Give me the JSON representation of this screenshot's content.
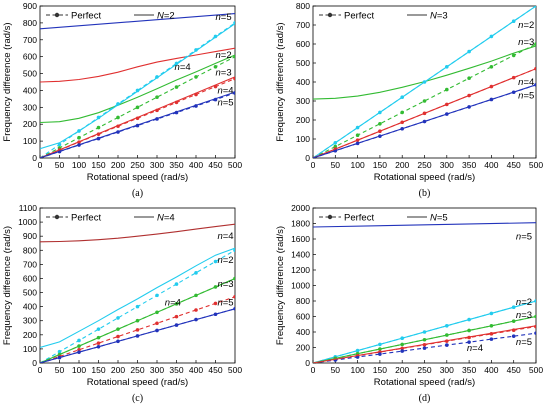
{
  "chart_data": [
    {
      "type": "line",
      "caption": "(a)",
      "xlabel": "Rotational speed  (rad/s)",
      "ylabel": "Frequency difference  (rad/s)",
      "xlim": [
        0,
        500
      ],
      "ylim": [
        0,
        900
      ],
      "xticks": [
        0,
        50,
        100,
        150,
        200,
        250,
        300,
        350,
        400,
        450,
        500
      ],
      "yticks": [
        0,
        100,
        200,
        300,
        400,
        500,
        600,
        700,
        800,
        900
      ],
      "legend": {
        "placement": "top-left",
        "entries": [
          {
            "label": "Perfect",
            "style": "dashed-marker"
          },
          {
            "label": "N=2",
            "style": "solid"
          }
        ]
      },
      "annotations": [
        {
          "text": "n=5",
          "x": 450,
          "y": 835
        },
        {
          "text": "n=4",
          "x": 345,
          "y": 540
        },
        {
          "text": "n=2",
          "x": 450,
          "y": 610
        },
        {
          "text": "n=3",
          "x": 450,
          "y": 505
        },
        {
          "text": "n=4",
          "x": 455,
          "y": 400
        },
        {
          "text": "n=5",
          "x": 455,
          "y": 330
        }
      ],
      "series": [
        {
          "color": "#2233bb",
          "style": "solid",
          "x": [
            0,
            500
          ],
          "y": [
            765,
            855
          ]
        },
        {
          "color": "#e03030",
          "style": "solid",
          "x": [
            0,
            50,
            100,
            150,
            200,
            250,
            300,
            350,
            400,
            450,
            500
          ],
          "y": [
            450,
            454,
            465,
            483,
            508,
            540,
            568,
            590,
            610,
            630,
            650
          ]
        },
        {
          "color": "#33bb33",
          "style": "solid",
          "x": [
            0,
            50,
            100,
            150,
            200,
            250,
            300,
            350,
            400,
            450,
            500
          ],
          "y": [
            210,
            215,
            235,
            268,
            312,
            360,
            410,
            462,
            510,
            560,
            610
          ]
        },
        {
          "color": "#22ccee",
          "style": "solid",
          "x": [
            0,
            50,
            100,
            150,
            200,
            250,
            300,
            350,
            400,
            450,
            500
          ],
          "y": [
            55,
            90,
            160,
            235,
            315,
            395,
            475,
            555,
            635,
            715,
            795
          ]
        },
        {
          "color": "#22ccee",
          "style": "dashed",
          "markers": true,
          "x": [
            0,
            50,
            100,
            150,
            200,
            250,
            300,
            350,
            400,
            450,
            500
          ],
          "y": [
            0,
            80,
            160,
            240,
            320,
            400,
            480,
            560,
            640,
            720,
            800
          ]
        },
        {
          "color": "#33bb33",
          "style": "dashed",
          "markers": true,
          "x": [
            0,
            50,
            100,
            150,
            200,
            250,
            300,
            350,
            400,
            450,
            500
          ],
          "y": [
            0,
            60,
            120,
            180,
            240,
            300,
            360,
            420,
            480,
            540,
            600
          ]
        },
        {
          "color": "#e03030",
          "style": "dashed",
          "markers": true,
          "x": [
            0,
            50,
            100,
            150,
            200,
            250,
            300,
            350,
            400,
            450,
            500
          ],
          "y": [
            0,
            47,
            94,
            141,
            188,
            235,
            282,
            329,
            376,
            423,
            470
          ]
        },
        {
          "color": "#2233bb",
          "style": "dashed",
          "markers": true,
          "x": [
            0,
            50,
            100,
            150,
            200,
            250,
            300,
            350,
            400,
            450,
            500
          ],
          "y": [
            0,
            38,
            77,
            115,
            154,
            192,
            231,
            269,
            308,
            346,
            385
          ]
        },
        {
          "color": "#e03030",
          "style": "solid",
          "x": [
            0,
            500
          ],
          "y": [
            0,
            480
          ]
        },
        {
          "color": "#2233bb",
          "style": "solid",
          "x": [
            0,
            500
          ],
          "y": [
            0,
            390
          ]
        }
      ]
    },
    {
      "type": "line",
      "caption": "(b)",
      "xlabel": "Rotational speed  (rad/s)",
      "ylabel": "Frequency difference  (rad/s)",
      "xlim": [
        0,
        500
      ],
      "ylim": [
        0,
        800
      ],
      "xticks": [
        0,
        50,
        100,
        150,
        200,
        250,
        300,
        350,
        400,
        450,
        500
      ],
      "yticks": [
        0,
        100,
        200,
        300,
        400,
        500,
        600,
        700,
        800
      ],
      "legend": {
        "placement": "top-left",
        "entries": [
          {
            "label": "Perfect",
            "style": "dashed-marker"
          },
          {
            "label": "N=3",
            "style": "solid"
          }
        ]
      },
      "annotations": [
        {
          "text": "n=2",
          "x": 460,
          "y": 700
        },
        {
          "text": "n=3",
          "x": 460,
          "y": 610
        },
        {
          "text": "n=4",
          "x": 460,
          "y": 400
        },
        {
          "text": "n=5",
          "x": 460,
          "y": 330
        }
      ],
      "series": [
        {
          "color": "#33bb33",
          "style": "solid",
          "x": [
            0,
            50,
            100,
            150,
            200,
            250,
            300,
            350,
            400,
            450,
            500
          ],
          "y": [
            310,
            314,
            326,
            346,
            372,
            402,
            436,
            472,
            510,
            552,
            590
          ]
        },
        {
          "color": "#22ccee",
          "style": "solid",
          "x": [
            0,
            500
          ],
          "y": [
            0,
            800
          ]
        },
        {
          "color": "#22ccee",
          "style": "dashed",
          "markers": true,
          "x": [
            0,
            50,
            100,
            150,
            200,
            250,
            300,
            350,
            400,
            450,
            500
          ],
          "y": [
            0,
            80,
            160,
            240,
            320,
            400,
            480,
            560,
            640,
            720,
            800
          ]
        },
        {
          "color": "#33bb33",
          "style": "dashed",
          "markers": true,
          "x": [
            0,
            50,
            100,
            150,
            200,
            250,
            300,
            350,
            400,
            450,
            500
          ],
          "y": [
            0,
            60,
            120,
            180,
            240,
            300,
            360,
            420,
            480,
            540,
            600
          ]
        },
        {
          "color": "#e03030",
          "style": "dashed",
          "markers": true,
          "x": [
            0,
            50,
            100,
            150,
            200,
            250,
            300,
            350,
            400,
            450,
            500
          ],
          "y": [
            0,
            47,
            94,
            141,
            188,
            235,
            282,
            329,
            376,
            423,
            470
          ]
        },
        {
          "color": "#2233bb",
          "style": "dashed",
          "markers": true,
          "x": [
            0,
            50,
            100,
            150,
            200,
            250,
            300,
            350,
            400,
            450,
            500
          ],
          "y": [
            0,
            38,
            77,
            115,
            154,
            192,
            231,
            269,
            308,
            346,
            385
          ]
        },
        {
          "color": "#e03030",
          "style": "solid",
          "x": [
            0,
            500
          ],
          "y": [
            0,
            470
          ]
        },
        {
          "color": "#2233bb",
          "style": "solid",
          "x": [
            0,
            500
          ],
          "y": [
            0,
            385
          ]
        }
      ]
    },
    {
      "type": "line",
      "caption": "(c)",
      "xlabel": "Rotational speed  (rad/s)",
      "ylabel": "Frequency difference  (rad/s)",
      "xlim": [
        0,
        500
      ],
      "ylim": [
        0,
        1100
      ],
      "xticks": [
        0,
        50,
        100,
        150,
        200,
        250,
        300,
        350,
        400,
        450,
        500
      ],
      "yticks": [
        0,
        100,
        200,
        300,
        400,
        500,
        600,
        700,
        800,
        900,
        1000,
        1100
      ],
      "legend": {
        "placement": "top-left",
        "entries": [
          {
            "label": "Perfect",
            "style": "dashed-marker"
          },
          {
            "label": "N=4",
            "style": "solid"
          }
        ]
      },
      "annotations": [
        {
          "text": "n=4",
          "x": 455,
          "y": 900
        },
        {
          "text": "n=2",
          "x": 455,
          "y": 730
        },
        {
          "text": "n=3",
          "x": 455,
          "y": 560
        },
        {
          "text": "n=4",
          "x": 320,
          "y": 430
        },
        {
          "text": "n=5",
          "x": 455,
          "y": 430
        }
      ],
      "series": [
        {
          "color": "#b03030",
          "style": "solid",
          "x": [
            0,
            50,
            100,
            150,
            200,
            250,
            300,
            350,
            400,
            450,
            500
          ],
          "y": [
            860,
            862,
            867,
            875,
            886,
            900,
            915,
            932,
            950,
            968,
            985
          ]
        },
        {
          "color": "#22ccee",
          "style": "solid",
          "x": [
            0,
            50,
            100,
            150,
            200,
            250,
            300,
            350,
            400,
            450,
            500
          ],
          "y": [
            110,
            150,
            225,
            300,
            380,
            455,
            535,
            610,
            690,
            765,
            815
          ]
        },
        {
          "color": "#22ccee",
          "style": "dashed",
          "markers": true,
          "x": [
            0,
            50,
            100,
            150,
            200,
            250,
            300,
            350,
            400,
            450,
            500
          ],
          "y": [
            0,
            80,
            160,
            240,
            320,
            400,
            480,
            560,
            640,
            720,
            800
          ]
        },
        {
          "color": "#33bb33",
          "style": "dashed",
          "markers": true,
          "x": [
            0,
            50,
            100,
            150,
            200,
            250,
            300,
            350,
            400,
            450,
            500
          ],
          "y": [
            0,
            60,
            120,
            180,
            240,
            300,
            360,
            420,
            480,
            540,
            600
          ]
        },
        {
          "color": "#e03030",
          "style": "dashed",
          "markers": true,
          "x": [
            0,
            50,
            100,
            150,
            200,
            250,
            300,
            350,
            400,
            450,
            500
          ],
          "y": [
            0,
            47,
            94,
            141,
            188,
            235,
            282,
            329,
            376,
            423,
            470
          ]
        },
        {
          "color": "#2233bb",
          "style": "dashed",
          "markers": true,
          "x": [
            0,
            50,
            100,
            150,
            200,
            250,
            300,
            350,
            400,
            450,
            500
          ],
          "y": [
            0,
            38,
            77,
            115,
            154,
            192,
            231,
            269,
            308,
            346,
            385
          ]
        },
        {
          "color": "#33bb33",
          "style": "solid",
          "x": [
            0,
            500
          ],
          "y": [
            0,
            600
          ]
        },
        {
          "color": "#2233bb",
          "style": "solid",
          "x": [
            0,
            500
          ],
          "y": [
            0,
            385
          ]
        }
      ]
    },
    {
      "type": "line",
      "caption": "(d)",
      "xlabel": "Rotational speed  (rad/s)",
      "ylabel": "Frequency difference  (rad/s)",
      "xlim": [
        0,
        500
      ],
      "ylim": [
        0,
        2000
      ],
      "xticks": [
        0,
        50,
        100,
        150,
        200,
        250,
        300,
        350,
        400,
        450,
        500
      ],
      "yticks": [
        0,
        200,
        400,
        600,
        800,
        1000,
        1200,
        1400,
        1600,
        1800,
        2000
      ],
      "legend": {
        "placement": "top-left",
        "entries": [
          {
            "label": "Perfect",
            "style": "dashed-marker"
          },
          {
            "label": "N=5",
            "style": "solid"
          }
        ]
      },
      "annotations": [
        {
          "text": "n=5",
          "x": 455,
          "y": 1630
        },
        {
          "text": "n=2",
          "x": 455,
          "y": 790
        },
        {
          "text": "n=3",
          "x": 455,
          "y": 620
        },
        {
          "text": "n=4",
          "x": 345,
          "y": 195
        },
        {
          "text": "n=5",
          "x": 455,
          "y": 270
        }
      ],
      "series": [
        {
          "color": "#2233bb",
          "style": "solid",
          "x": [
            0,
            500
          ],
          "y": [
            1755,
            1810
          ]
        },
        {
          "color": "#22ccee",
          "style": "solid",
          "x": [
            0,
            500
          ],
          "y": [
            0,
            800
          ]
        },
        {
          "color": "#22ccee",
          "style": "dashed",
          "markers": true,
          "x": [
            0,
            50,
            100,
            150,
            200,
            250,
            300,
            350,
            400,
            450,
            500
          ],
          "y": [
            0,
            80,
            160,
            240,
            320,
            400,
            480,
            560,
            640,
            720,
            800
          ]
        },
        {
          "color": "#33bb33",
          "style": "dashed",
          "markers": true,
          "x": [
            0,
            50,
            100,
            150,
            200,
            250,
            300,
            350,
            400,
            450,
            500
          ],
          "y": [
            0,
            60,
            120,
            180,
            240,
            300,
            360,
            420,
            480,
            540,
            600
          ]
        },
        {
          "color": "#e03030",
          "style": "dashed",
          "markers": true,
          "x": [
            0,
            50,
            100,
            150,
            200,
            250,
            300,
            350,
            400,
            450,
            500
          ],
          "y": [
            0,
            47,
            94,
            141,
            188,
            235,
            282,
            329,
            376,
            423,
            470
          ]
        },
        {
          "color": "#2233bb",
          "style": "dashed",
          "markers": true,
          "x": [
            0,
            50,
            100,
            150,
            200,
            250,
            300,
            350,
            400,
            450,
            500
          ],
          "y": [
            0,
            38,
            77,
            115,
            154,
            192,
            231,
            269,
            308,
            346,
            385
          ]
        },
        {
          "color": "#33bb33",
          "style": "solid",
          "x": [
            0,
            500
          ],
          "y": [
            0,
            600
          ]
        },
        {
          "color": "#e03030",
          "style": "solid",
          "x": [
            0,
            500
          ],
          "y": [
            0,
            480
          ]
        }
      ]
    }
  ]
}
